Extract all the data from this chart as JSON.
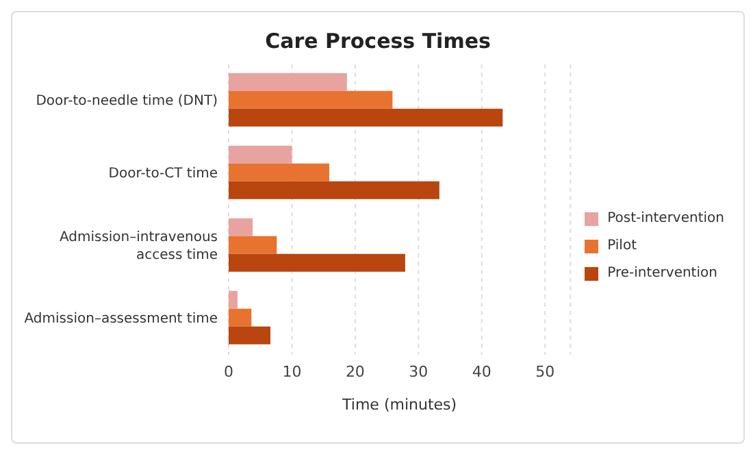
{
  "chart_data": {
    "type": "bar",
    "orientation": "horizontal",
    "title": "Care Process Times",
    "xlabel": "Time (minutes)",
    "categories": [
      "Door-to-needle time (DNT)",
      "Door-to-CT time",
      "Admission–intravenous access time",
      "Admission–assessment time"
    ],
    "series": [
      {
        "name": "Post-intervention",
        "color": "#e8a3a0",
        "values": [
          18.7,
          10.0,
          3.8,
          1.4
        ]
      },
      {
        "name": "Pilot",
        "color": "#e8722f",
        "values": [
          25.9,
          15.9,
          7.6,
          3.6
        ]
      },
      {
        "name": "Pre-intervention",
        "color": "#b9450f",
        "values": [
          43.3,
          33.3,
          27.9,
          6.6
        ]
      }
    ],
    "xlim": [
      0,
      54
    ],
    "xticks": [
      0,
      10,
      20,
      30,
      40,
      50
    ],
    "grid": "x",
    "legend": "right"
  }
}
